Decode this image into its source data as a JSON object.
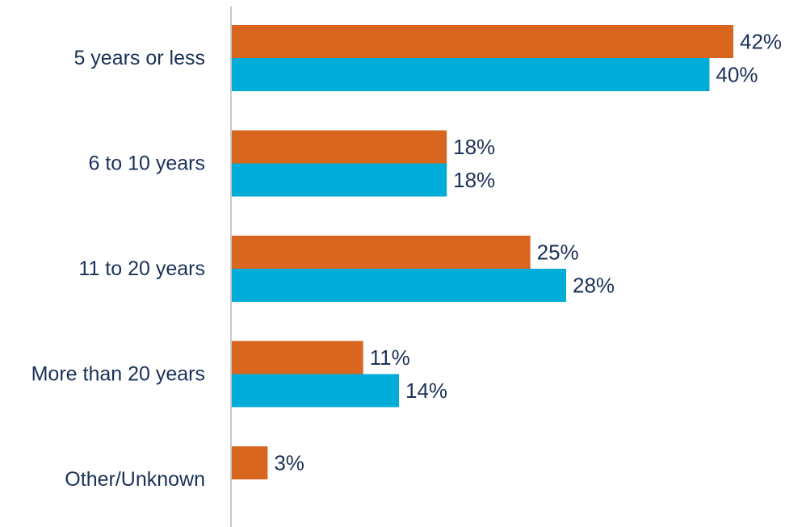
{
  "chart_data": {
    "type": "bar",
    "orientation": "horizontal",
    "categories": [
      "5 years or less",
      "6 to 10 years",
      "11 to 20 years",
      "More than 20 years",
      "Other/Unknown"
    ],
    "series": [
      {
        "values": [
          42,
          18,
          25,
          11,
          3
        ],
        "value_labels": [
          "42%",
          "18%",
          "25%",
          "11%",
          "3%"
        ],
        "color": "#d9661f"
      },
      {
        "values": [
          40,
          18,
          28,
          14,
          null
        ],
        "value_labels": [
          "40%",
          "18%",
          "28%",
          "14%",
          null
        ],
        "color": "#00acd8"
      }
    ],
    "xlim": [
      0,
      42
    ],
    "grid": false,
    "legend": "none",
    "text_color": "#1b3158",
    "axis_color": "#c8c8c8"
  }
}
